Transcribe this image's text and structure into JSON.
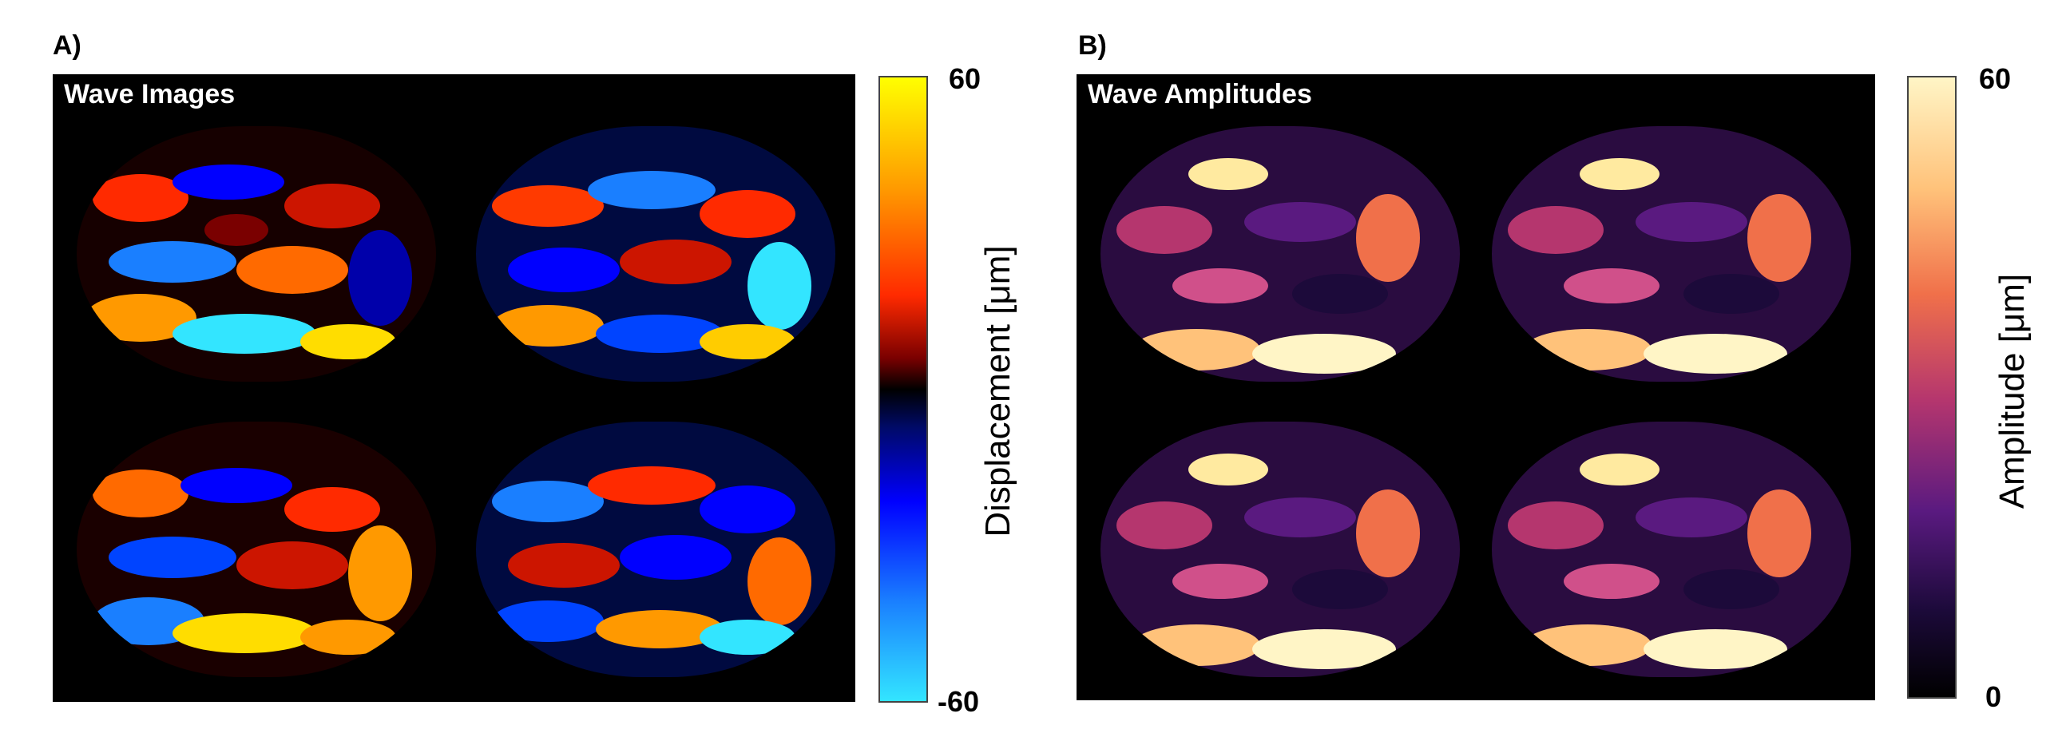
{
  "panel_a": {
    "label": "A)",
    "title": "Wave Images",
    "colorbar": {
      "max": "60",
      "min": "-60",
      "label": "Displacement [μm]",
      "colors": [
        "#ffff00",
        "#ff9900",
        "#ff2a00",
        "#7a0000",
        "#000000",
        "#000a66",
        "#0000ff",
        "#1a7fff",
        "#33e5ff"
      ]
    }
  },
  "panel_b": {
    "label": "B)",
    "title": "Wave Amplitudes",
    "colorbar": {
      "max": "60",
      "min": "0",
      "label": "Amplitude [μm]",
      "colors": [
        "#fff5c6",
        "#ffc27a",
        "#f0704a",
        "#b5366e",
        "#5a1a80",
        "#1c0a3a",
        "#000000"
      ]
    }
  }
}
